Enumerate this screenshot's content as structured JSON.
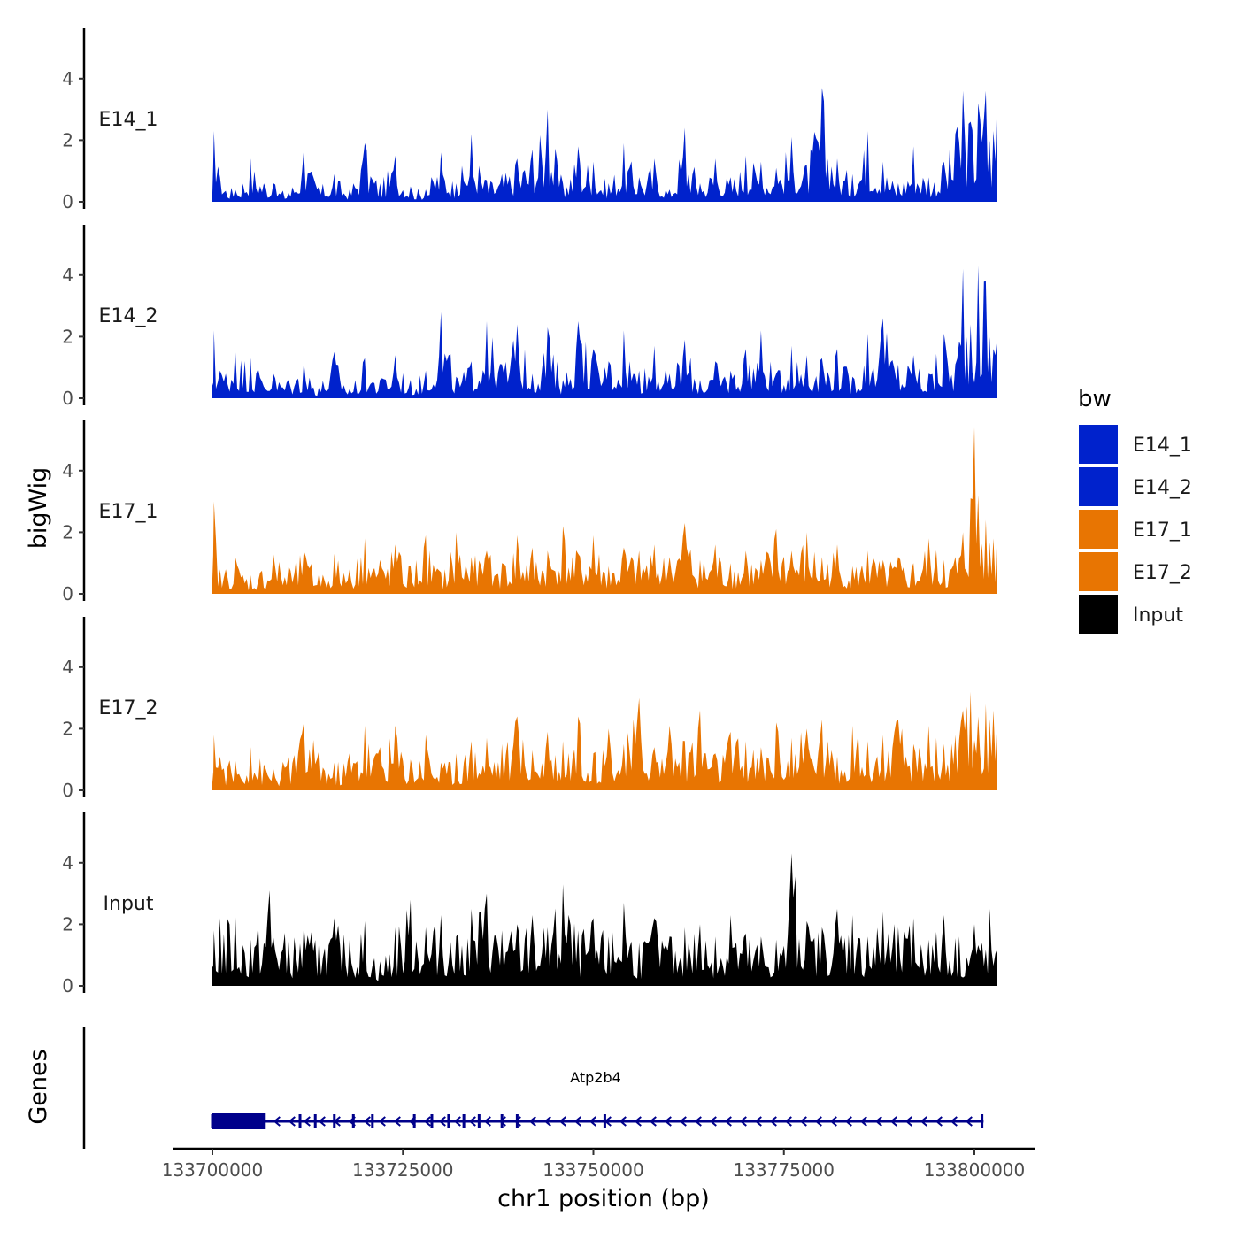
{
  "chart_data": {
    "type": "area",
    "title": "",
    "xlabel": "chr1 position (bp)",
    "ylabel": "bigWig",
    "genes_label": "Genes",
    "xlim": [
      133700000,
      133803000
    ],
    "ylim": [
      0,
      5.5
    ],
    "x_ticks": [
      133700000,
      133725000,
      133750000,
      133775000,
      133800000
    ],
    "x_tick_labels": [
      "133700000",
      "133725000",
      "133750000",
      "133775000",
      "133800000"
    ],
    "y_ticks": [
      0,
      2,
      4
    ],
    "y_tick_labels": [
      "0",
      "2",
      "4"
    ],
    "legend": {
      "title": "bw",
      "position": "right",
      "entries": [
        {
          "label": "E14_1",
          "color": "#0022cc"
        },
        {
          "label": "E14_2",
          "color": "#0022cc"
        },
        {
          "label": "E17_1",
          "color": "#e87502"
        },
        {
          "label": "E17_2",
          "color": "#e87502"
        },
        {
          "label": "Input",
          "color": "#000000"
        }
      ]
    },
    "series": [
      {
        "name": "E14_1",
        "color": "#0022cc",
        "x": [
          133700000,
          133700200,
          133701000,
          133703000,
          133705000,
          133708000,
          133710000,
          133712000,
          133714000,
          133716000,
          133718000,
          133720000,
          133722000,
          133724000,
          133726000,
          133728000,
          133730000,
          133732000,
          133734000,
          133736000,
          133738000,
          133740000,
          133742000,
          133744000,
          133746000,
          133748000,
          133750000,
          133752000,
          133754000,
          133756000,
          133758000,
          133760000,
          133762000,
          133764000,
          133766000,
          133768000,
          133770000,
          133772000,
          133774000,
          133776000,
          133778000,
          133780000,
          133782000,
          133784000,
          133786000,
          133788000,
          133790000,
          133792000,
          133794000,
          133796000,
          133797500,
          133798500,
          133799500,
          133800500,
          133801500,
          133802500,
          133803000
        ],
        "values": [
          0.3,
          2.3,
          0.8,
          0.4,
          1.4,
          0.6,
          0.3,
          1.7,
          0.5,
          0.9,
          0.4,
          1.9,
          0.6,
          1.5,
          0.5,
          0.4,
          1.6,
          0.6,
          2.2,
          0.7,
          0.9,
          1.4,
          1.7,
          3.0,
          0.6,
          1.8,
          1.3,
          0.6,
          1.9,
          0.8,
          1.4,
          0.4,
          2.4,
          0.6,
          1.4,
          0.8,
          1.5,
          1.3,
          1.1,
          2.1,
          1.2,
          3.7,
          1.4,
          0.9,
          2.3,
          1.3,
          0.6,
          1.8,
          0.8,
          1.3,
          2.2,
          3.6,
          2.6,
          3.2,
          3.6,
          2.3,
          3.5
        ]
      },
      {
        "name": "E14_2",
        "color": "#0022cc",
        "x": [
          133700000,
          133700200,
          133701000,
          133703000,
          133705000,
          133708000,
          133710000,
          133712000,
          133714000,
          133716000,
          133718000,
          133720000,
          133722000,
          133724000,
          133726000,
          133728000,
          133730000,
          133732000,
          133734000,
          133736000,
          133738000,
          133740000,
          133742000,
          133744000,
          133746000,
          133748000,
          133750000,
          133752000,
          133754000,
          133756000,
          133758000,
          133760000,
          133762000,
          133764000,
          133766000,
          133768000,
          133770000,
          133772000,
          133774000,
          133776000,
          133778000,
          133780000,
          133782000,
          133784000,
          133786000,
          133788000,
          133790000,
          133792000,
          133794000,
          133796000,
          133797500,
          133798500,
          133799500,
          133800500,
          133801500,
          133802500,
          133803000
        ],
        "values": [
          0.5,
          2.2,
          0.9,
          1.6,
          1.3,
          0.8,
          0.6,
          1.2,
          0.4,
          1.5,
          0.3,
          1.3,
          0.6,
          1.4,
          0.6,
          0.9,
          2.8,
          0.7,
          1.2,
          2.5,
          1.1,
          2.4,
          0.8,
          2.3,
          0.6,
          2.5,
          1.6,
          1.2,
          2.2,
          0.9,
          1.7,
          0.8,
          1.9,
          0.6,
          1.2,
          0.9,
          1.6,
          2.2,
          0.8,
          1.7,
          1.4,
          1.3,
          1.6,
          0.7,
          2.1,
          2.6,
          1.1,
          1.4,
          0.8,
          2.1,
          1.1,
          4.2,
          2.4,
          4.3,
          3.8,
          1.6,
          2.0
        ]
      },
      {
        "name": "E17_1",
        "color": "#e87502",
        "x": [
          133700000,
          133700200,
          133701000,
          133703000,
          133705000,
          133708000,
          133710000,
          133712000,
          133714000,
          133716000,
          133718000,
          133720000,
          133722000,
          133724000,
          133726000,
          133728000,
          133730000,
          133732000,
          133734000,
          133736000,
          133738000,
          133740000,
          133742000,
          133744000,
          133746000,
          133748000,
          133750000,
          133752000,
          133754000,
          133756000,
          133758000,
          133760000,
          133762000,
          133764000,
          133766000,
          133768000,
          133770000,
          133772000,
          133774000,
          133776000,
          133778000,
          133780000,
          133782000,
          133784000,
          133786000,
          133788000,
          133790000,
          133792000,
          133794000,
          133796000,
          133797500,
          133798500,
          133799500,
          133800000,
          133800500,
          133801500,
          133802500,
          133803000
        ],
        "values": [
          0.5,
          3.0,
          0.8,
          1.2,
          0.6,
          1.3,
          0.9,
          1.4,
          0.7,
          1.3,
          0.8,
          1.8,
          1.1,
          1.6,
          0.9,
          1.9,
          0.7,
          2.0,
          1.2,
          1.4,
          1.0,
          1.9,
          1.5,
          1.4,
          2.2,
          1.3,
          1.9,
          0.9,
          1.5,
          1.4,
          1.6,
          1.2,
          2.3,
          1.1,
          1.6,
          1.0,
          1.4,
          1.1,
          2.1,
          1.4,
          2.0,
          1.2,
          1.6,
          0.9,
          1.4,
          1.1,
          1.2,
          1.0,
          1.8,
          1.1,
          1.2,
          2.0,
          3.1,
          5.4,
          3.2,
          2.4,
          1.8,
          2.2
        ]
      },
      {
        "name": "E17_2",
        "color": "#e87502",
        "x": [
          133700000,
          133700200,
          133701000,
          133703000,
          133705000,
          133708000,
          133710000,
          133712000,
          133714000,
          133716000,
          133718000,
          133720000,
          133722000,
          133724000,
          133726000,
          133728000,
          133730000,
          133732000,
          133734000,
          133736000,
          133738000,
          133740000,
          133742000,
          133744000,
          133746000,
          133748000,
          133750000,
          133752000,
          133754000,
          133756000,
          133758000,
          133760000,
          133762000,
          133764000,
          133766000,
          133768000,
          133770000,
          133772000,
          133774000,
          133776000,
          133778000,
          133780000,
          133782000,
          133784000,
          133786000,
          133788000,
          133790000,
          133792000,
          133794000,
          133796000,
          133797500,
          133798500,
          133799500,
          133800500,
          133801500,
          133802500,
          133803000
        ],
        "values": [
          0.6,
          1.8,
          1.1,
          1.0,
          1.4,
          0.7,
          1.1,
          2.2,
          1.3,
          0.9,
          1.2,
          2.1,
          1.4,
          2.1,
          1.0,
          1.8,
          0.9,
          1.2,
          1.6,
          1.7,
          1.5,
          2.4,
          1.3,
          1.9,
          1.6,
          2.4,
          1.2,
          2.0,
          1.5,
          3.0,
          1.4,
          2.1,
          1.6,
          2.6,
          1.2,
          1.9,
          1.6,
          1.4,
          2.2,
          1.7,
          2.0,
          2.3,
          1.1,
          2.1,
          1.6,
          1.8,
          2.3,
          1.5,
          2.1,
          1.5,
          1.8,
          2.6,
          3.2,
          2.4,
          2.8,
          2.6,
          2.4
        ]
      },
      {
        "name": "Input",
        "color": "#000000",
        "x": [
          133700000,
          133700200,
          133701000,
          133703000,
          133705000,
          133707500,
          133710000,
          133712000,
          133714000,
          133716000,
          133718000,
          133720000,
          133722000,
          133724000,
          133726000,
          133728000,
          133730000,
          133732000,
          133734000,
          133736000,
          133738000,
          133740000,
          133742000,
          133744000,
          133746000,
          133748000,
          133750000,
          133752000,
          133754000,
          133756000,
          133758000,
          133760000,
          133762000,
          133764000,
          133766000,
          133768000,
          133770000,
          133772000,
          133774000,
          133775000,
          133776000,
          133778000,
          133780000,
          133782000,
          133784000,
          133786000,
          133788000,
          133790000,
          133792000,
          133794000,
          133796000,
          133798000,
          133800000,
          133801000,
          133802000,
          133803000
        ],
        "values": [
          0.6,
          1.8,
          2.2,
          2.4,
          1.5,
          3.1,
          1.5,
          2.0,
          1.6,
          2.2,
          1.5,
          2.1,
          0.8,
          1.9,
          2.8,
          1.9,
          2.3,
          1.6,
          2.5,
          3.0,
          1.8,
          2.0,
          2.3,
          1.9,
          3.3,
          1.8,
          2.2,
          1.6,
          2.7,
          1.4,
          2.2,
          1.6,
          1.9,
          2.0,
          1.6,
          2.3,
          1.7,
          1.6,
          1.5,
          1.3,
          4.3,
          2.1,
          1.9,
          2.5,
          2.3,
          1.6,
          2.4,
          1.9,
          2.2,
          1.5,
          2.3,
          1.6,
          2.0,
          1.4,
          2.5,
          1.2
        ]
      }
    ],
    "gene": {
      "name": "Atp2b4",
      "strand": "-",
      "start": 133700000,
      "end": 133801200,
      "thick_region": [
        133700000,
        133707000
      ],
      "exons": [
        133700000,
        133705000,
        133711500,
        133713500,
        133716000,
        133718500,
        133721000,
        133726500,
        133728800,
        133731000,
        133733000,
        133735000,
        133738000,
        133740000,
        133751500,
        133801000
      ]
    }
  }
}
